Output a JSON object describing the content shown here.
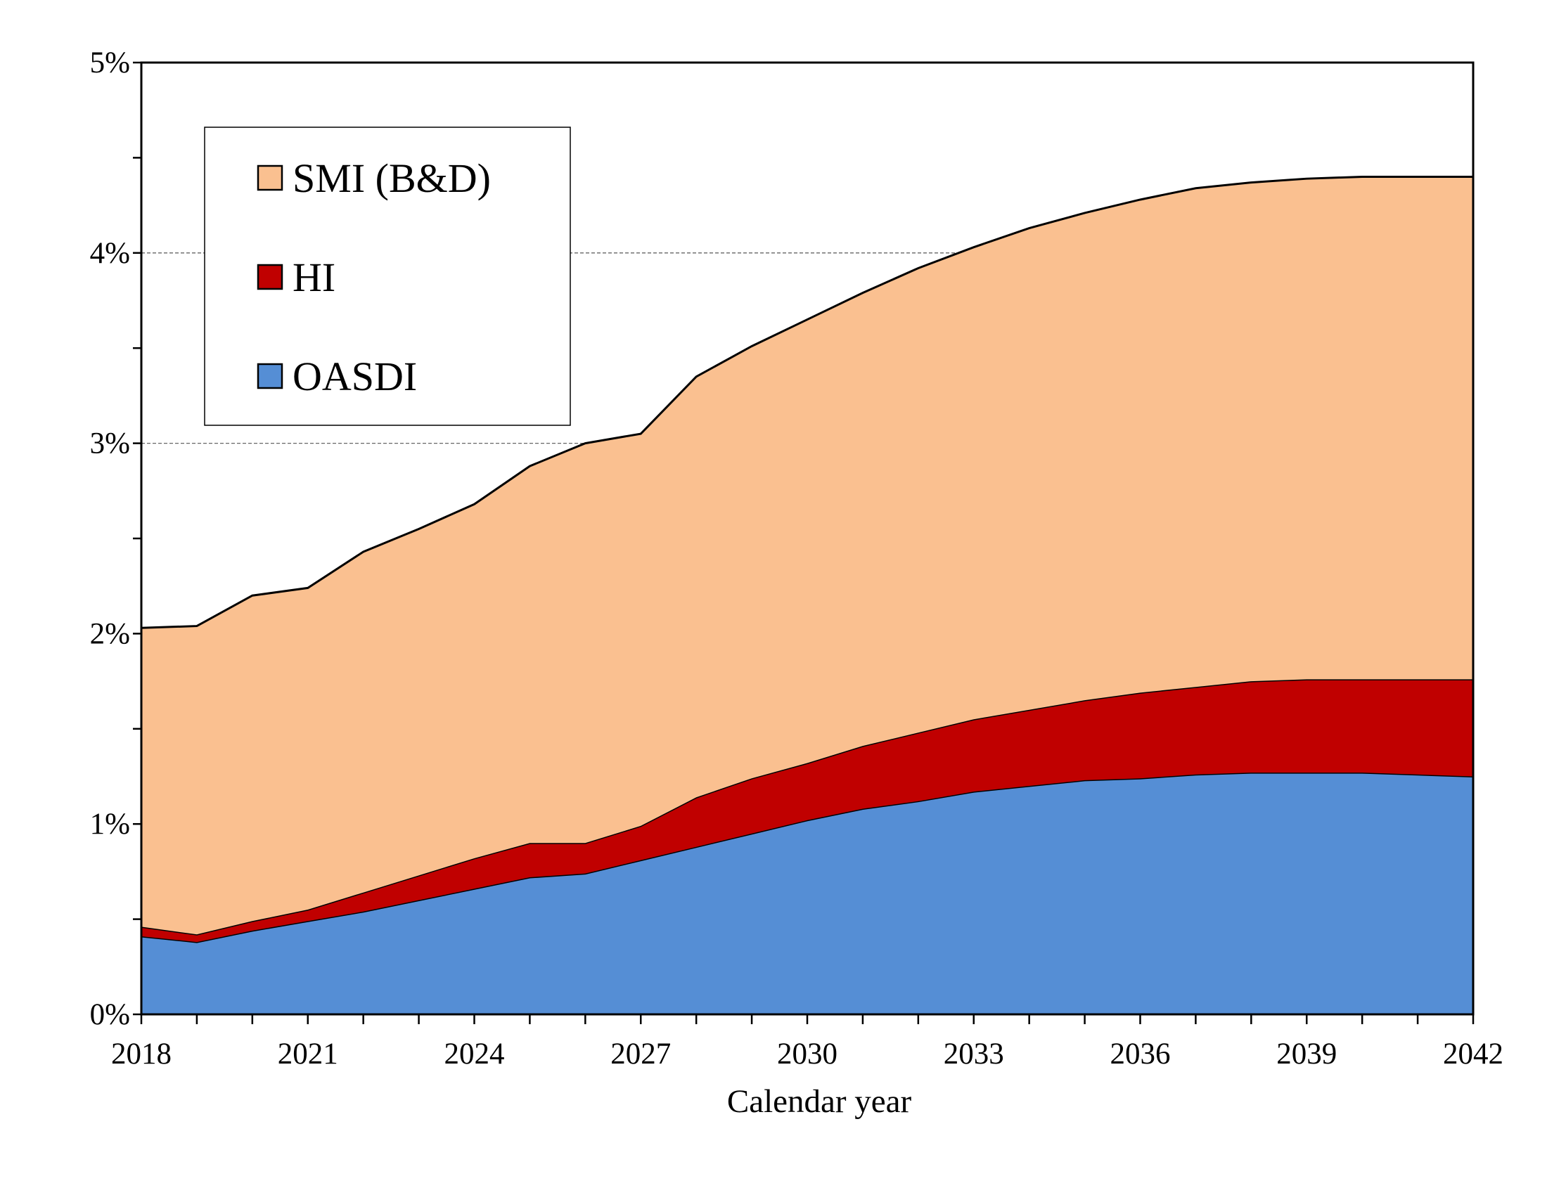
{
  "chart_data": {
    "type": "area",
    "stacked": true,
    "title": "",
    "xlabel": "Calendar year",
    "ylabel": "",
    "ylim": [
      0,
      5
    ],
    "xlim": [
      2018,
      2042
    ],
    "y_tick_labels": [
      "0%",
      "1%",
      "2%",
      "3%",
      "4%",
      "5%"
    ],
    "x_tick_labels": [
      "2018",
      "2021",
      "2024",
      "2027",
      "2030",
      "2033",
      "2036",
      "2039",
      "2042"
    ],
    "grid": "horizontal dashed at major ticks",
    "legend_position": "top-left",
    "x": [
      2018,
      2019,
      2020,
      2021,
      2022,
      2023,
      2024,
      2025,
      2026,
      2027,
      2028,
      2029,
      2030,
      2031,
      2032,
      2033,
      2034,
      2035,
      2036,
      2037,
      2038,
      2039,
      2040,
      2041,
      2042
    ],
    "series": [
      {
        "name": "OASDI",
        "color": "#558ed5",
        "values": [
          0.41,
          0.38,
          0.44,
          0.49,
          0.54,
          0.6,
          0.66,
          0.72,
          0.74,
          0.81,
          0.88,
          0.95,
          1.02,
          1.08,
          1.12,
          1.17,
          1.2,
          1.23,
          1.24,
          1.26,
          1.27,
          1.27,
          1.27,
          1.26,
          1.25
        ]
      },
      {
        "name": "HI",
        "color": "#c00000",
        "values": [
          0.05,
          0.04,
          0.05,
          0.06,
          0.1,
          0.13,
          0.16,
          0.18,
          0.16,
          0.18,
          0.26,
          0.29,
          0.3,
          0.33,
          0.36,
          0.38,
          0.4,
          0.42,
          0.45,
          0.46,
          0.48,
          0.49,
          0.49,
          0.5,
          0.51
        ]
      },
      {
        "name": "SMI (B&D)",
        "color": "#fac090",
        "values": [
          1.57,
          1.62,
          1.71,
          1.69,
          1.79,
          1.82,
          1.86,
          1.98,
          2.1,
          2.06,
          2.21,
          2.27,
          2.33,
          2.38,
          2.44,
          2.48,
          2.53,
          2.56,
          2.59,
          2.62,
          2.62,
          2.63,
          2.64,
          2.64,
          2.64
        ]
      }
    ],
    "legend_order": [
      "SMI (B&D)",
      "HI",
      "OASDI"
    ]
  }
}
